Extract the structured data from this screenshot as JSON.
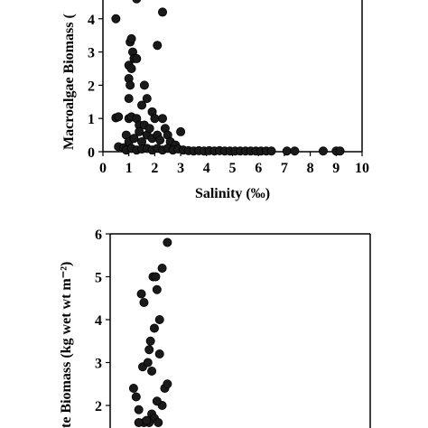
{
  "chart_data": [
    {
      "type": "scatter",
      "xlabel": "Salinity (‰)",
      "ylabel": "Macroalgae Biomass (",
      "xlim": [
        0,
        10
      ],
      "ylim": [
        0,
        4.7
      ],
      "x_ticks": [
        "0",
        "1",
        "2",
        "3",
        "4",
        "5",
        "6",
        "7",
        "8",
        "9",
        "10"
      ],
      "y_ticks": [
        "0",
        "1",
        "2",
        "3",
        "4"
      ],
      "marker_color": "#1a1a1a",
      "points": [
        [
          0.5,
          1.02
        ],
        [
          0.6,
          1.05
        ],
        [
          0.5,
          4.0
        ],
        [
          1.0,
          1.0
        ],
        [
          1.1,
          1.05
        ],
        [
          1.05,
          3.3
        ],
        [
          1.1,
          3.4
        ],
        [
          1.15,
          3.0
        ],
        [
          1.0,
          2.6
        ],
        [
          1.1,
          2.5
        ],
        [
          1.2,
          2.8
        ],
        [
          1.3,
          2.8
        ],
        [
          1.0,
          2.2
        ],
        [
          1.05,
          2.0
        ],
        [
          1.0,
          1.6
        ],
        [
          1.3,
          4.6
        ],
        [
          1.2,
          4.7
        ],
        [
          1.3,
          1.0
        ],
        [
          1.4,
          0.8
        ],
        [
          1.6,
          2.0
        ],
        [
          1.7,
          1.6
        ],
        [
          1.5,
          1.4
        ],
        [
          1.9,
          1.2
        ],
        [
          2.0,
          1.0
        ],
        [
          2.1,
          3.2
        ],
        [
          2.3,
          4.2
        ],
        [
          2.3,
          1.0
        ],
        [
          2.4,
          0.7
        ],
        [
          2.5,
          0.5
        ],
        [
          0.6,
          0.15
        ],
        [
          0.8,
          0.12
        ],
        [
          0.9,
          0.5
        ],
        [
          1.0,
          0.3
        ],
        [
          1.2,
          0.4
        ],
        [
          1.4,
          0.6
        ],
        [
          1.5,
          0.3
        ],
        [
          1.6,
          0.8
        ],
        [
          1.7,
          0.5
        ],
        [
          1.8,
          0.7
        ],
        [
          1.9,
          0.4
        ],
        [
          2.1,
          0.5
        ],
        [
          2.2,
          0.35
        ],
        [
          2.6,
          0.3
        ],
        [
          2.8,
          0.2
        ],
        [
          3.0,
          0.6
        ],
        [
          0.9,
          0.05
        ],
        [
          1.1,
          0.1
        ],
        [
          1.3,
          0.05
        ],
        [
          1.5,
          0.08
        ],
        [
          1.7,
          0.1
        ],
        [
          1.9,
          0.05
        ],
        [
          2.1,
          0.1
        ],
        [
          2.3,
          0.05
        ],
        [
          2.5,
          0.1
        ],
        [
          2.7,
          0.05
        ],
        [
          2.9,
          0.08
        ],
        [
          3.1,
          0.05
        ],
        [
          3.3,
          0.03
        ],
        [
          3.5,
          0.02
        ],
        [
          3.7,
          0.03
        ],
        [
          3.9,
          0.02
        ],
        [
          4.1,
          0.03
        ],
        [
          4.3,
          0.02
        ],
        [
          4.5,
          0.03
        ],
        [
          4.7,
          0.02
        ],
        [
          4.9,
          0.02
        ],
        [
          5.1,
          0.02
        ],
        [
          5.3,
          0.02
        ],
        [
          5.5,
          0.02
        ],
        [
          5.7,
          0.02
        ],
        [
          5.9,
          0.02
        ],
        [
          6.1,
          0.02
        ],
        [
          6.3,
          0.02
        ],
        [
          6.5,
          0.02
        ],
        [
          7.1,
          0.02
        ],
        [
          7.4,
          0.02
        ],
        [
          8.5,
          0.02
        ],
        [
          9.0,
          0.02
        ],
        [
          9.15,
          0.02
        ]
      ]
    },
    {
      "type": "scatter",
      "xlabel": "",
      "ylabel": "te Biomass (kg wet wt m⁻²)",
      "ylim": [
        1.5,
        6.2
      ],
      "y_ticks": [
        "2",
        "3",
        "4",
        "5",
        "6"
      ],
      "marker_color": "#1a1a1a",
      "points": [
        [
          0.9,
          2.4
        ],
        [
          1.0,
          2.2
        ],
        [
          1.1,
          1.9
        ],
        [
          1.2,
          4.6
        ],
        [
          1.3,
          4.4
        ],
        [
          1.25,
          2.9
        ],
        [
          1.5,
          3.3
        ],
        [
          1.45,
          3.0
        ],
        [
          1.55,
          3.5
        ],
        [
          1.6,
          2.8
        ],
        [
          1.7,
          3.8
        ],
        [
          1.9,
          4.0
        ],
        [
          1.65,
          5.0
        ],
        [
          1.75,
          5.0
        ],
        [
          2.0,
          5.2
        ],
        [
          1.8,
          4.7
        ],
        [
          2.2,
          5.8
        ],
        [
          1.9,
          3.2
        ],
        [
          2.1,
          2.4
        ],
        [
          2.2,
          2.5
        ],
        [
          2.0,
          2.0
        ],
        [
          1.8,
          2.1
        ],
        [
          1.6,
          1.8
        ],
        [
          1.7,
          1.7
        ],
        [
          1.5,
          1.6
        ],
        [
          1.3,
          1.6
        ],
        [
          1.1,
          1.6
        ],
        [
          1.4,
          1.65
        ],
        [
          1.85,
          1.6
        ]
      ]
    }
  ]
}
